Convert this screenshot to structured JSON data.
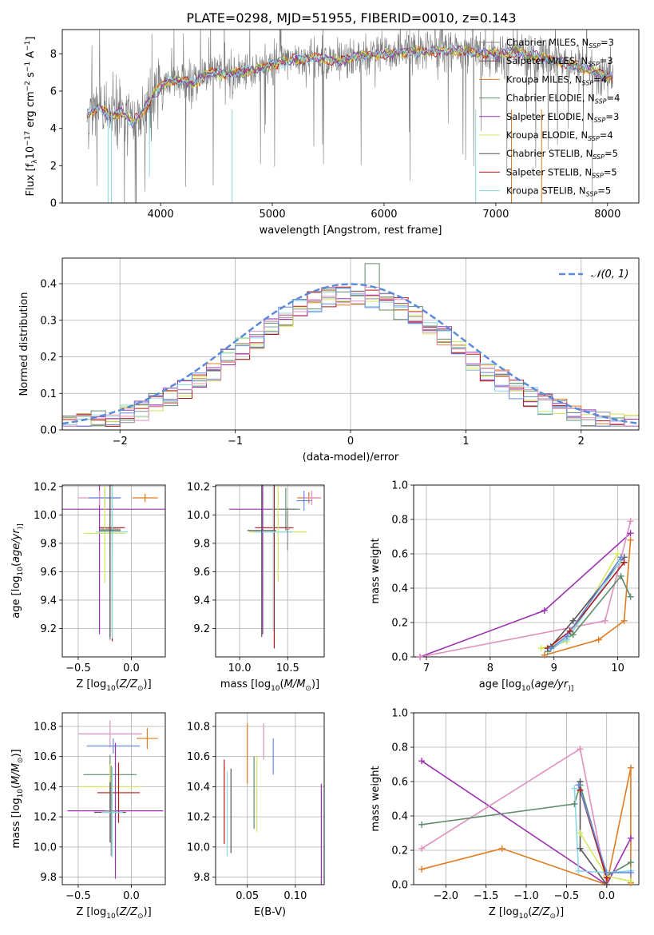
{
  "title": "PLATE=0298, MJD=51955, FIBERID=0010, z=0.143",
  "colors": {
    "Chabrier MILES": "#8c8c8c",
    "Salpeter MILES": "#7f3f5f",
    "Kroupa MILES": "#e07b1f",
    "Chabrier ELODIE": "#5e8c6a",
    "Salpeter ELODIE": "#9b30b0",
    "Kroupa ELODIE": "#d4e65a",
    "Chabrier STELIB": "#555555",
    "Salpeter STELIB": "#b01818",
    "Kroupa STELIB": "#88d8e6",
    "pink": "#e090c0",
    "blue": "#6688dd",
    "gauss": "#5b8bd8"
  },
  "chart_data": [
    {
      "id": "spectrum",
      "type": "line",
      "xlabel": "wavelength [Angstrom, rest frame]",
      "ylabel_parts": [
        "Flux [f",
        "λ",
        "10",
        "−17",
        " erg cm",
        "−2",
        " s",
        "−1",
        " A",
        "−1",
        "]"
      ],
      "xlim": [
        3120,
        8280
      ],
      "ylim": [
        0,
        9.3
      ],
      "xticks": [
        4000,
        5000,
        6000,
        7000,
        8000
      ],
      "yticks": [
        0,
        2,
        4,
        6,
        8
      ],
      "legend": [
        {
          "prefix": "Chabrier MILES, N",
          "sub": "SSP",
          "suffix": "=3"
        },
        {
          "prefix": "Salpeter MILES, N",
          "sub": "SSP",
          "suffix": "=3"
        },
        {
          "prefix": "Kroupa MILES, N",
          "sub": "SSP",
          "suffix": "=4"
        },
        {
          "prefix": "Chabrier ELODIE, N",
          "sub": "SSP",
          "suffix": "=4"
        },
        {
          "prefix": "Salpeter ELODIE, N",
          "sub": "SSP",
          "suffix": "=3"
        },
        {
          "prefix": "Kroupa ELODIE, N",
          "sub": "SSP",
          "suffix": "=4"
        },
        {
          "prefix": "Chabrier STELIB, N",
          "sub": "SSP",
          "suffix": "=5"
        },
        {
          "prefix": "Salpeter STELIB, N",
          "sub": "SSP",
          "suffix": "=5"
        },
        {
          "prefix": "Kroupa STELIB, N",
          "sub": "SSP",
          "suffix": "=5"
        }
      ],
      "continuum": [
        [
          3350,
          4.7
        ],
        [
          3450,
          5.2
        ],
        [
          3550,
          4.6
        ],
        [
          3650,
          4.9
        ],
        [
          3750,
          4.3
        ],
        [
          3850,
          5.0
        ],
        [
          3950,
          5.9
        ],
        [
          4050,
          6.5
        ],
        [
          4150,
          6.6
        ],
        [
          4300,
          6.4
        ],
        [
          4450,
          7.0
        ],
        [
          4600,
          6.9
        ],
        [
          4800,
          7.1
        ],
        [
          5000,
          7.4
        ],
        [
          5200,
          7.7
        ],
        [
          5400,
          7.8
        ],
        [
          5600,
          7.6
        ],
        [
          5800,
          7.9
        ],
        [
          6000,
          8.0
        ],
        [
          6200,
          8.1
        ],
        [
          6400,
          8.1
        ],
        [
          6600,
          8.2
        ],
        [
          6800,
          8.1
        ],
        [
          7000,
          8.0
        ],
        [
          7200,
          8.1
        ],
        [
          7400,
          7.8
        ],
        [
          7600,
          7.5
        ],
        [
          7800,
          7.2
        ],
        [
          8000,
          6.8
        ],
        [
          8050,
          6.7
        ]
      ]
    },
    {
      "id": "residuals",
      "type": "histogram",
      "xlabel": "(data-model)/error",
      "ylabel": "Normed distribution",
      "xlim": [
        -2.5,
        2.5
      ],
      "ylim": [
        0,
        0.47
      ],
      "xticks": [
        -2,
        -1,
        0,
        1,
        2
      ],
      "yticks": [
        0.0,
        0.1,
        0.2,
        0.3,
        0.4
      ],
      "legend_label": "𝒩(0, 1)",
      "gauss_sigma": 1
    },
    {
      "id": "age-vs-Z",
      "type": "errorbar",
      "xlabel_parts": [
        "Z [log",
        "10",
        "(",
        "Z/Z",
        "⊙",
        ")]"
      ],
      "ylabel_parts": [
        "age  [log",
        "10",
        "(",
        "age/yr",
        ")]"
      ],
      "xlim": [
        -0.65,
        0.32
      ],
      "ylim": [
        9.0,
        10.21
      ],
      "xticks": [
        -0.5,
        0.0
      ],
      "yticks": [
        9.2,
        9.4,
        9.6,
        9.8,
        10.0,
        10.2
      ],
      "points": [
        {
          "c": "Chabrier MILES",
          "x": -0.2,
          "y": 9.9,
          "xe": 0.1,
          "ye": 0.15
        },
        {
          "c": "Salpeter ELODIE",
          "x": -0.3,
          "y": 10.04,
          "xe": 0.62,
          "ye": 0.88
        },
        {
          "c": "Kroupa MILES",
          "x": 0.13,
          "y": 10.12,
          "xe": 0.12,
          "ye": 0.03
        },
        {
          "c": "pink",
          "x": -0.3,
          "y": 10.12,
          "xe": 0.2,
          "ye": 0.05
        },
        {
          "c": "blue",
          "x": -0.25,
          "y": 10.12,
          "xe": 0.15,
          "ye": 0.06
        },
        {
          "c": "Chabrier ELODIE",
          "x": -0.2,
          "y": 9.9,
          "xe": 0.08,
          "ye": 0.78
        },
        {
          "c": "Salpeter STELIB",
          "x": -0.18,
          "y": 9.91,
          "xe": 0.12,
          "ye": 0.8
        },
        {
          "c": "Kroupa ELODIE",
          "x": -0.25,
          "y": 9.87,
          "xe": 0.2,
          "ye": 0.35
        },
        {
          "c": "Kroupa STELIB",
          "x": -0.18,
          "y": 9.88,
          "xe": 0.15,
          "ye": 0.75
        },
        {
          "c": "Chabrier STELIB",
          "x": -0.2,
          "y": 9.89,
          "xe": 0.1,
          "ye": 0.75
        }
      ]
    },
    {
      "id": "age-vs-mass",
      "type": "errorbar",
      "xlabel_parts": [
        "mass [log",
        "10",
        "(",
        "M/M",
        "⊙",
        ")]"
      ],
      "xlim": [
        9.75,
        10.88
      ],
      "ylim": [
        9.0,
        10.21
      ],
      "xticks": [
        10.0,
        10.5
      ],
      "yticks": [
        9.2,
        9.4,
        9.6,
        9.8,
        10.0,
        10.2
      ],
      "points": [
        {
          "c": "Salpeter ELODIE",
          "x": 10.24,
          "y": 10.04,
          "xe": 0.35,
          "ye": 0.88
        },
        {
          "c": "Kroupa MILES",
          "x": 10.72,
          "y": 10.12,
          "xe": 0.12,
          "ye": 0.04
        },
        {
          "c": "pink",
          "x": 10.75,
          "y": 10.12,
          "xe": 0.1,
          "ye": 0.05
        },
        {
          "c": "blue",
          "x": 10.67,
          "y": 10.1,
          "xe": 0.08,
          "ye": 0.07
        },
        {
          "c": "Chabrier ELODIE",
          "x": 10.48,
          "y": 10.04,
          "xe": 0.15,
          "ye": 0.15
        },
        {
          "c": "Salpeter STELIB",
          "x": 10.36,
          "y": 9.91,
          "xe": 0.2,
          "ye": 0.85
        },
        {
          "c": "Kroupa ELODIE",
          "x": 10.4,
          "y": 9.88,
          "xe": 0.3,
          "ye": 0.35
        },
        {
          "c": "Kroupa STELIB",
          "x": 10.35,
          "y": 9.88,
          "xe": 0.2,
          "ye": 0.7
        },
        {
          "c": "Chabrier STELIB",
          "x": 10.23,
          "y": 9.89,
          "xe": 0.15,
          "ye": 0.75
        },
        {
          "c": "Chabrier MILES",
          "x": 10.5,
          "y": 9.9,
          "xe": 0.02,
          "ye": 0.15
        }
      ]
    },
    {
      "id": "weight-vs-age",
      "type": "line",
      "xlabel_parts": [
        "age  [log",
        "10",
        "(",
        "age/yr",
        ")]"
      ],
      "ylabel": "mass weight",
      "xlim": [
        6.8,
        10.33
      ],
      "ylim": [
        0,
        1.0
      ],
      "xticks": [
        7,
        8,
        9,
        10
      ],
      "yticks": [
        0.0,
        0.2,
        0.4,
        0.6,
        0.8,
        1.0
      ],
      "series": [
        {
          "c": "Salpeter ELODIE",
          "pts": [
            [
              6.9,
              0.0
            ],
            [
              8.85,
              0.27
            ],
            [
              10.2,
              0.72
            ]
          ]
        },
        {
          "c": "pink",
          "pts": [
            [
              6.9,
              0.0
            ],
            [
              9.8,
              0.21
            ],
            [
              10.2,
              0.79
            ]
          ]
        },
        {
          "c": "Kroupa MILES",
          "pts": [
            [
              8.85,
              0.01
            ],
            [
              9.7,
              0.1
            ],
            [
              10.1,
              0.21
            ],
            [
              10.2,
              0.68
            ]
          ]
        },
        {
          "c": "Chabrier ELODIE",
          "pts": [
            [
              8.9,
              0.03
            ],
            [
              9.3,
              0.13
            ],
            [
              10.05,
              0.47
            ],
            [
              10.2,
              0.35
            ]
          ]
        },
        {
          "c": "Kroupa ELODIE",
          "pts": [
            [
              8.8,
              0.05
            ],
            [
              9.2,
              0.09
            ],
            [
              10.0,
              0.6
            ]
          ]
        },
        {
          "c": "Chabrier STELIB",
          "pts": [
            [
              8.95,
              0.06
            ],
            [
              9.3,
              0.21
            ],
            [
              10.1,
              0.58
            ]
          ]
        },
        {
          "c": "Kroupa STELIB",
          "pts": [
            [
              8.9,
              0.04
            ],
            [
              9.2,
              0.1
            ],
            [
              10.05,
              0.56
            ]
          ]
        },
        {
          "c": "Salpeter STELIB",
          "pts": [
            [
              8.9,
              0.05
            ],
            [
              9.25,
              0.15
            ],
            [
              10.1,
              0.55
            ]
          ]
        },
        {
          "c": "blue",
          "pts": [
            [
              8.95,
              0.05
            ],
            [
              9.2,
              0.12
            ],
            [
              10.05,
              0.58
            ]
          ]
        }
      ]
    },
    {
      "id": "mass-vs-Z",
      "type": "errorbar",
      "xlabel_parts": [
        "Z [log",
        "10",
        "(",
        "Z/Z",
        "⊙",
        ")]"
      ],
      "ylabel_parts": [
        "mass [log",
        "10",
        "(",
        "M/M",
        "⊙",
        ")]"
      ],
      "xlim": [
        -0.65,
        0.32
      ],
      "ylim": [
        9.75,
        10.89
      ],
      "xticks": [
        -0.5,
        0.0
      ],
      "yticks": [
        9.8,
        10.0,
        10.2,
        10.4,
        10.6,
        10.8
      ],
      "points": [
        {
          "c": "pink",
          "x": -0.2,
          "y": 10.75,
          "xe": 0.3,
          "ye": 0.09
        },
        {
          "c": "Kroupa MILES",
          "x": 0.15,
          "y": 10.72,
          "xe": 0.1,
          "ye": 0.07
        },
        {
          "c": "blue",
          "x": -0.17,
          "y": 10.67,
          "xe": 0.25,
          "ye": 0.05
        },
        {
          "c": "Chabrier ELODIE",
          "x": -0.2,
          "y": 10.48,
          "xe": 0.25,
          "ye": 0.13
        },
        {
          "c": "Kroupa ELODIE",
          "x": -0.2,
          "y": 10.4,
          "xe": 0.3,
          "ye": 0.15
        },
        {
          "c": "Salpeter STELIB",
          "x": -0.12,
          "y": 10.36,
          "xe": 0.2,
          "ye": 0.2
        },
        {
          "c": "Salpeter ELODIE",
          "x": -0.15,
          "y": 10.24,
          "xe": 0.45,
          "ye": 0.45
        },
        {
          "c": "Chabrier STELIB",
          "x": -0.2,
          "y": 10.23,
          "xe": 0.15,
          "ye": 0.2
        },
        {
          "c": "Kroupa STELIB",
          "x": -0.18,
          "y": 10.23,
          "xe": 0.1,
          "ye": 0.3
        },
        {
          "c": "Chabrier MILES",
          "x": -0.19,
          "y": 10.24,
          "xe": 0.05,
          "ye": 0.3
        }
      ]
    },
    {
      "id": "mass-vs-EBV",
      "type": "errorbar",
      "xlabel": "E(B-V)",
      "xlim": [
        0.017,
        0.13
      ],
      "ylim": [
        9.75,
        10.89
      ],
      "xticks": [
        0.05,
        0.1
      ],
      "yticks": [
        9.8,
        10.0,
        10.2,
        10.4,
        10.6,
        10.8
      ],
      "points": [
        {
          "c": "Salpeter STELIB",
          "x": 0.026,
          "y": 10.3,
          "ye": 0.28
        },
        {
          "c": "Kroupa STELIB",
          "x": 0.029,
          "y": 10.22,
          "ye": 0.28
        },
        {
          "c": "Chabrier STELIB",
          "x": 0.033,
          "y": 10.24,
          "ye": 0.28
        },
        {
          "c": "Kroupa MILES",
          "x": 0.05,
          "y": 10.62,
          "ye": 0.2
        },
        {
          "c": "Chabrier ELODIE",
          "x": 0.057,
          "y": 10.36,
          "ye": 0.24
        },
        {
          "c": "Kroupa ELODIE",
          "x": 0.06,
          "y": 10.35,
          "ye": 0.25
        },
        {
          "c": "pink",
          "x": 0.067,
          "y": 10.7,
          "ye": 0.12
        },
        {
          "c": "blue",
          "x": 0.077,
          "y": 10.6,
          "ye": 0.12
        },
        {
          "c": "Salpeter ELODIE",
          "x": 0.127,
          "y": 10.03,
          "ye": 0.39
        }
      ]
    },
    {
      "id": "weight-vs-Z",
      "type": "line",
      "xlabel_parts": [
        "Z [log",
        "10",
        "(",
        "Z/Z",
        "⊙",
        ")]"
      ],
      "ylabel": "mass weight",
      "xlim": [
        -2.4,
        0.4
      ],
      "ylim": [
        0,
        1.0
      ],
      "xticks": [
        -2.0,
        -1.5,
        -1.0,
        -0.5,
        0.0
      ],
      "yticks": [
        0.0,
        0.2,
        0.4,
        0.6,
        0.8,
        1.0
      ],
      "series": [
        {
          "c": "Salpeter ELODIE",
          "pts": [
            [
              -2.3,
              0.72
            ],
            [
              0.0,
              0.0
            ],
            [
              0.3,
              0.27
            ]
          ]
        },
        {
          "c": "pink",
          "pts": [
            [
              -2.3,
              0.21
            ],
            [
              -0.33,
              0.79
            ],
            [
              0.0,
              0.0
            ]
          ]
        },
        {
          "c": "Kroupa MILES",
          "pts": [
            [
              -2.3,
              0.09
            ],
            [
              -1.3,
              0.21
            ],
            [
              0.0,
              0.0
            ],
            [
              0.3,
              0.68
            ],
            [
              0.3,
              0.01
            ]
          ]
        },
        {
          "c": "Chabrier ELODIE",
          "pts": [
            [
              -2.3,
              0.35
            ],
            [
              -0.4,
              0.47
            ],
            [
              -0.33,
              0.58
            ],
            [
              0.0,
              0.05
            ],
            [
              0.3,
              0.13
            ]
          ]
        },
        {
          "c": "Chabrier STELIB",
          "pts": [
            [
              -0.33,
              0.6
            ],
            [
              -0.33,
              0.21
            ],
            [
              0.0,
              0.0
            ]
          ]
        },
        {
          "c": "Kroupa ELODIE",
          "pts": [
            [
              -0.33,
              0.3
            ],
            [
              0.0,
              0.05
            ],
            [
              0.3,
              0.02
            ]
          ]
        },
        {
          "c": "Kroupa STELIB",
          "pts": [
            [
              -0.4,
              0.56
            ],
            [
              -0.35,
              0.08
            ],
            [
              0.0,
              0.07
            ],
            [
              0.3,
              0.08
            ]
          ]
        },
        {
          "c": "Salpeter STELIB",
          "pts": [
            [
              -0.33,
              0.55
            ],
            [
              0.0,
              0.04
            ]
          ]
        },
        {
          "c": "blue",
          "pts": [
            [
              -0.35,
              0.58
            ],
            [
              0.0,
              0.07
            ],
            [
              0.3,
              0.07
            ]
          ]
        }
      ]
    }
  ]
}
